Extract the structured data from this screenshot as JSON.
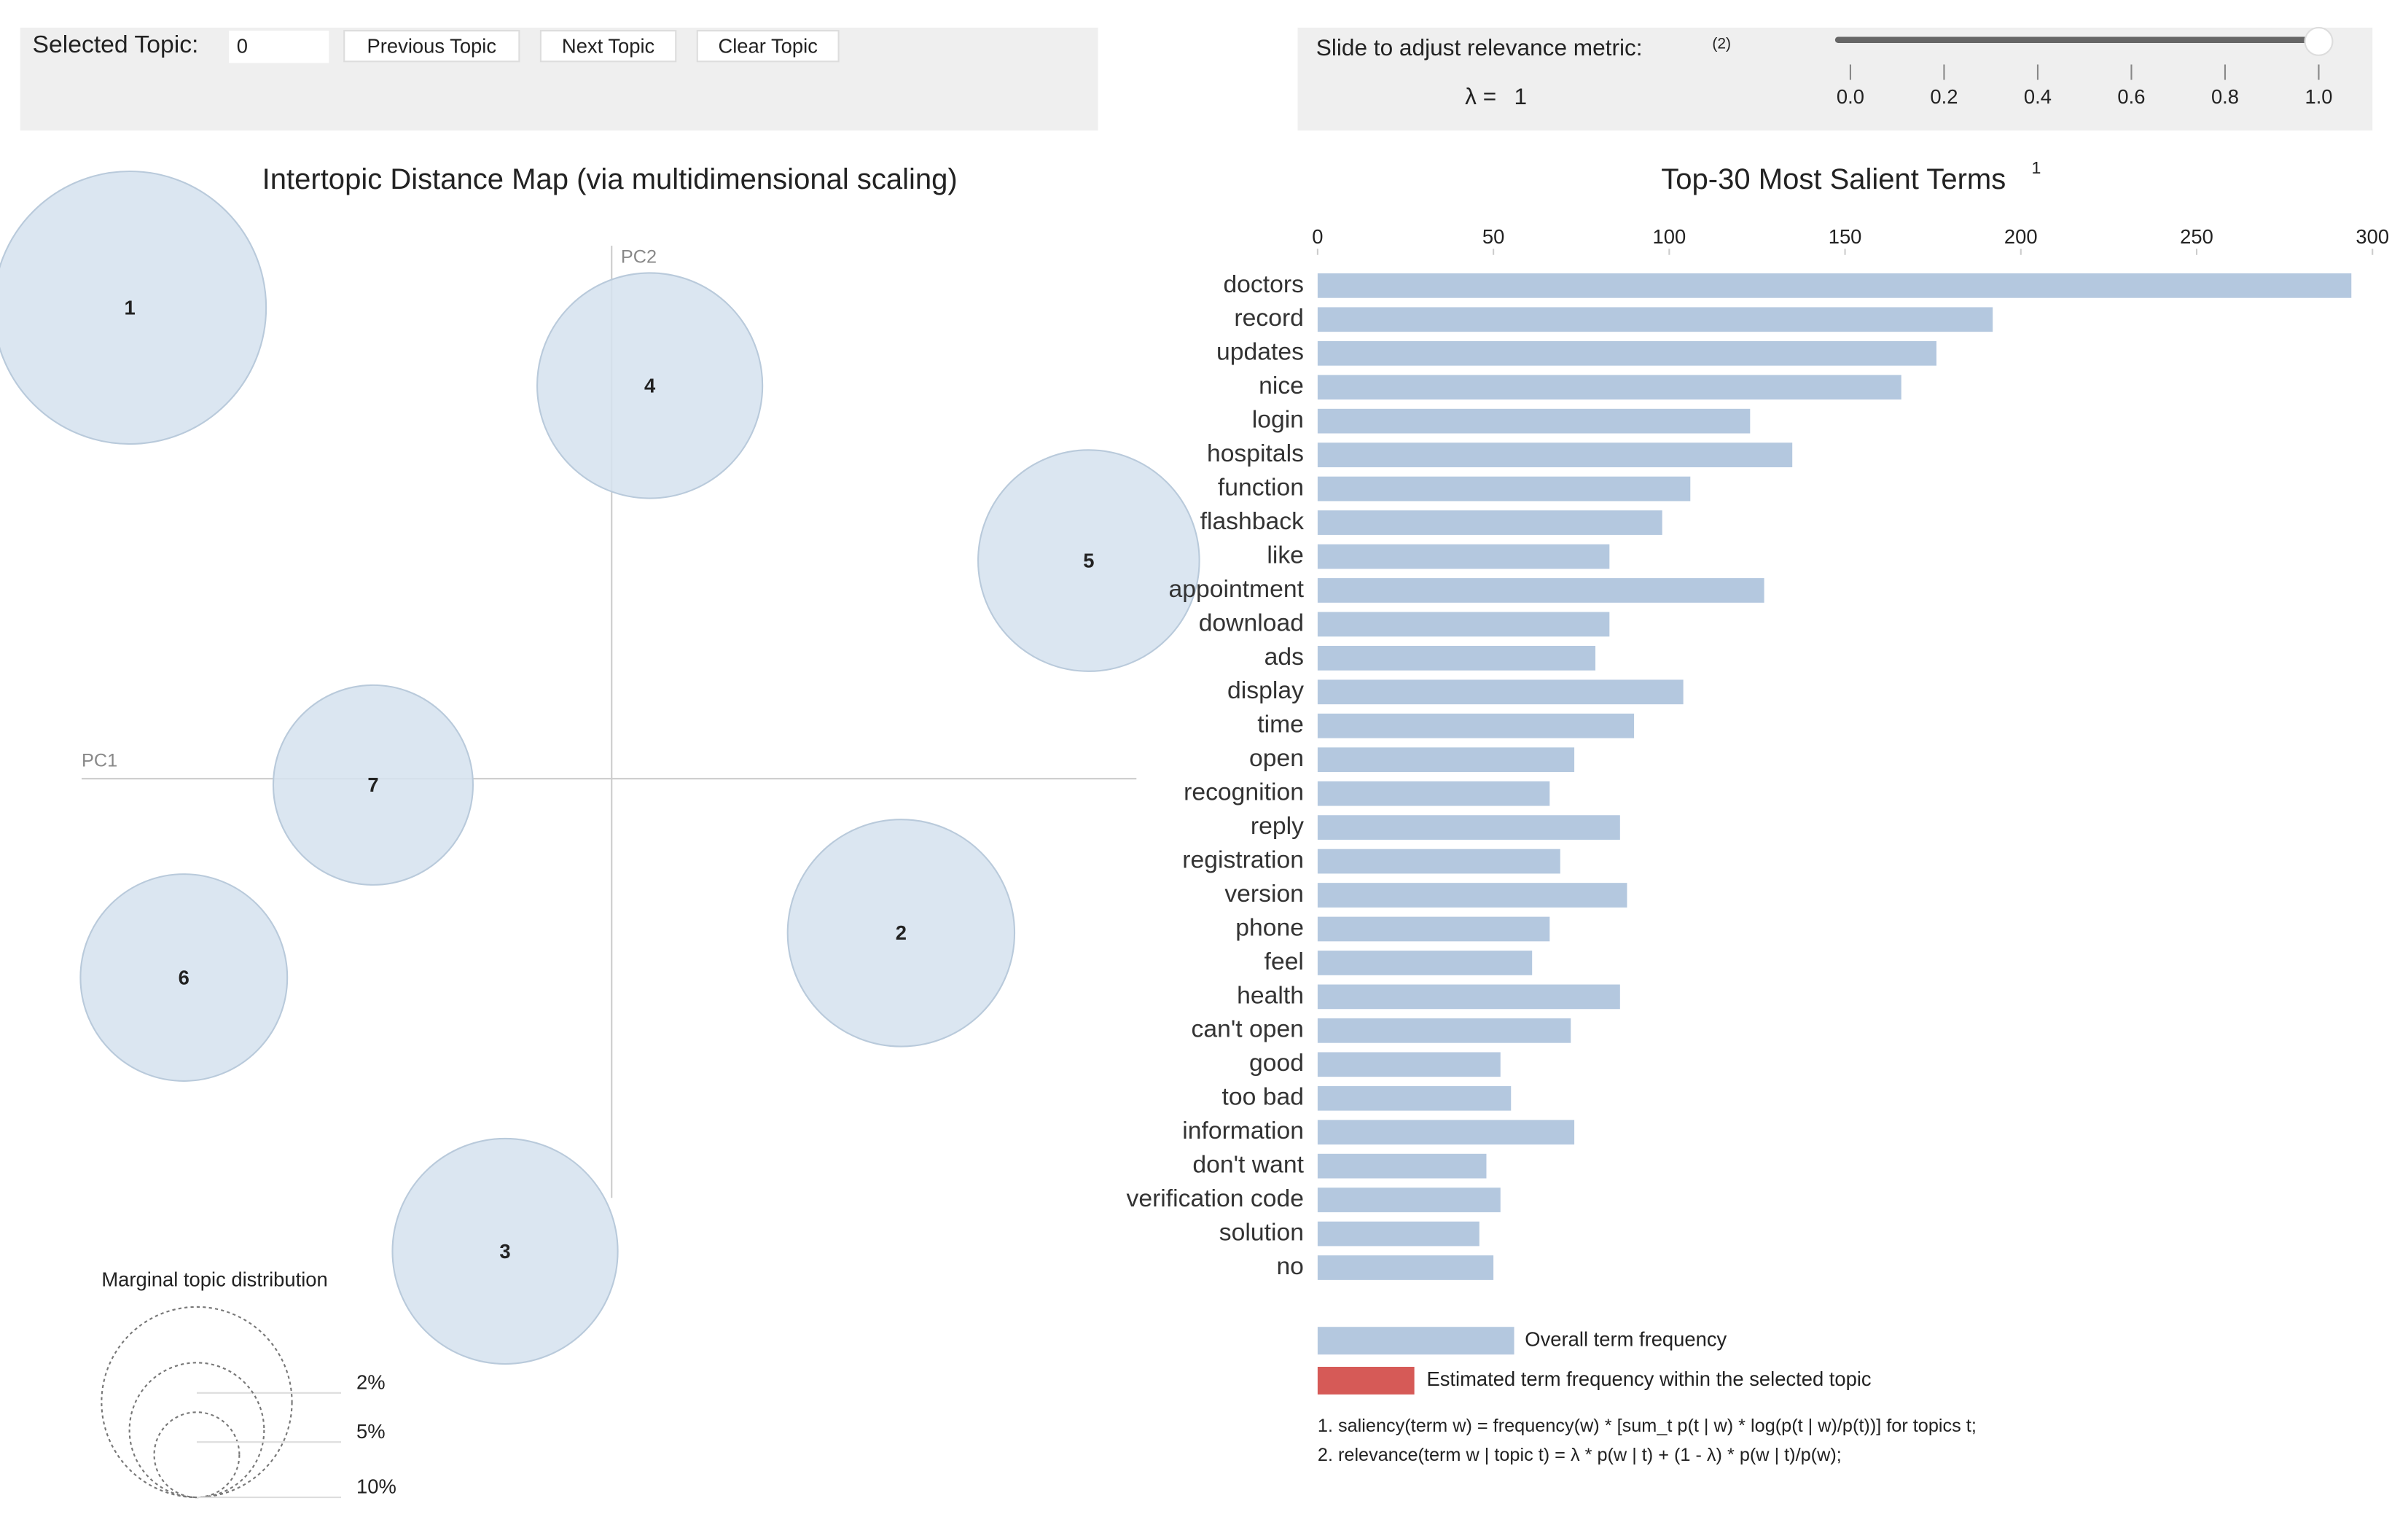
{
  "controls": {
    "selected_topic_label": "Selected Topic:",
    "selected_topic": 0,
    "buttons": [
      "Previous Topic",
      "Next Topic",
      "Clear Topic"
    ],
    "slider_label": "Slide to adjust relevance metric:",
    "slider_note": "(2)",
    "lambda_label": "λ =",
    "slider_value": 1,
    "slider_ticks": [
      {
        "value": 0,
        "label": "0.0"
      },
      {
        "value": 0.2,
        "label": "0.2"
      },
      {
        "value": 0.4,
        "label": "0.4"
      },
      {
        "value": 0.6,
        "label": "0.6"
      },
      {
        "value": 0.8,
        "label": "0.8"
      },
      {
        "value": 1,
        "label": "1.0"
      }
    ]
  },
  "chart_data": [
    {
      "type": "bubble",
      "title": "Intertopic Distance Map (via multidimensional scaling)",
      "x_label": "PC1",
      "y_label": "PC2",
      "categories": [
        "1",
        "4",
        "5",
        "7",
        "6",
        "2",
        "3"
      ],
      "x": [
        -0.303,
        0.024,
        0.3,
        -0.15,
        -0.269,
        0.182,
        -0.067
      ],
      "y": [
        0.296,
        0.247,
        0.137,
        -0.004,
        -0.125,
        -0.097,
        -0.297
      ],
      "sizes": [
        20.5,
        14,
        13.5,
        11,
        11.8,
        14.2,
        14
      ],
      "xlim": [
        -0.37,
        0.33
      ],
      "ylim": [
        -0.47,
        0.36
      ],
      "color": "#d5e2ee",
      "legend_title": "Marginal topic distribution",
      "size_legend": [
        {
          "value": 2,
          "label": "2%"
        },
        {
          "value": 5,
          "label": "5%"
        },
        {
          "value": 10,
          "label": "10%"
        }
      ]
    },
    {
      "type": "bar",
      "title": "Top-30 Most Salient Terms",
      "title_note": "1",
      "categories": [
        "doctors",
        "record",
        "updates",
        "nice",
        "login",
        "hospitals",
        "function",
        "flashback",
        "like",
        "appointment",
        "download",
        "ads",
        "display",
        "time",
        "open",
        "recognition",
        "reply",
        "registration",
        "version",
        "phone",
        "feel",
        "health",
        "can't open",
        "good",
        "too bad",
        "information",
        "don't want",
        "verification code",
        "solution",
        "no"
      ],
      "values": [
        294,
        192,
        176,
        166,
        123,
        135,
        106,
        98,
        83,
        127,
        83,
        79,
        104,
        90,
        73,
        66,
        86,
        69,
        88,
        66,
        61,
        86,
        72,
        52,
        55,
        73,
        48,
        52,
        46,
        50
      ],
      "color": "#b4c8df",
      "xlim": [
        0,
        300
      ],
      "xticks": [
        0,
        50,
        100,
        150,
        200,
        250,
        300
      ],
      "legend": [
        {
          "name": "Overall term frequency",
          "color": "#b4c8df"
        },
        {
          "name": "Estimated term frequency within the selected topic",
          "color": "#d65a57"
        }
      ]
    }
  ],
  "footnotes": [
    "1. saliency(term w) = frequency(w) * [sum_t p(t | w) * log(p(t | w)/p(t))] for topics t;",
    "2. relevance(term w | topic t) = λ * p(w | t) + (1 - λ) * p(w | t)/p(w);"
  ]
}
